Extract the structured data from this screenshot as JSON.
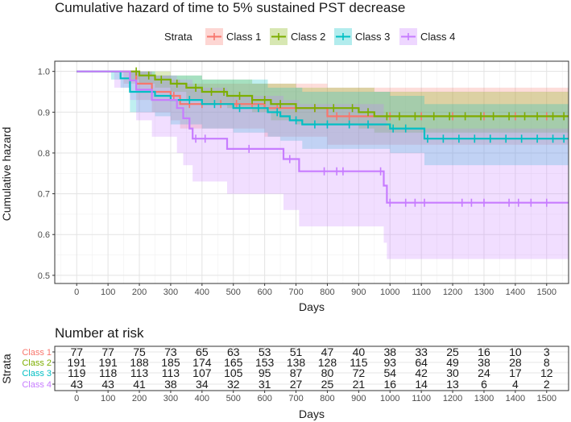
{
  "chart_data": {
    "type": "line",
    "title": "Cumulative hazard of time to 5% sustained PST decrease",
    "legend_title": "Strata",
    "legend_position": "top",
    "xlabel": "Days",
    "ylabel": "Cumulative hazard",
    "xlim": [
      -70,
      1570
    ],
    "ylim": [
      0.48,
      1.025
    ],
    "x_ticks": [
      0,
      100,
      200,
      300,
      400,
      500,
      600,
      700,
      800,
      900,
      1000,
      1100,
      1200,
      1300,
      1400,
      1500
    ],
    "y_ticks": [
      0.5,
      0.6,
      0.7,
      0.8,
      0.9,
      1.0
    ],
    "y_tick_labels": [
      "0.5",
      "0.6",
      "0.7",
      "0.8",
      "0.9",
      "1.0"
    ],
    "grid": true,
    "series": [
      {
        "name": "Class 1",
        "color": "#F8766D",
        "steps": [
          [
            0,
            1.0
          ],
          [
            100,
            1.0
          ],
          [
            190,
            0.97
          ],
          [
            240,
            0.95
          ],
          [
            300,
            0.94
          ],
          [
            330,
            0.92
          ],
          [
            600,
            0.91
          ],
          [
            800,
            0.89
          ],
          [
            1570,
            0.89
          ]
        ],
        "ci_lower": [
          [
            0,
            1.0
          ],
          [
            150,
            0.97
          ],
          [
            190,
            0.93
          ],
          [
            240,
            0.9
          ],
          [
            300,
            0.88
          ],
          [
            330,
            0.86
          ],
          [
            600,
            0.84
          ],
          [
            800,
            0.82
          ],
          [
            1570,
            0.82
          ]
        ],
        "ci_upper": [
          [
            0,
            1.0
          ],
          [
            150,
            1.0
          ],
          [
            190,
            1.0
          ],
          [
            240,
            0.99
          ],
          [
            300,
            0.98
          ],
          [
            330,
            0.97
          ],
          [
            600,
            0.97
          ],
          [
            800,
            0.96
          ],
          [
            1570,
            0.96
          ]
        ],
        "censor_marks": [
          310,
          360,
          400,
          460,
          510,
          560,
          640,
          700,
          760,
          830,
          870,
          1000,
          1100,
          1200,
          1300,
          1400,
          1500
        ]
      },
      {
        "name": "Class 2",
        "color": "#7CAE00",
        "steps": [
          [
            0,
            1.0
          ],
          [
            170,
            1.0
          ],
          [
            200,
            0.99
          ],
          [
            250,
            0.98
          ],
          [
            300,
            0.97
          ],
          [
            350,
            0.96
          ],
          [
            400,
            0.95
          ],
          [
            480,
            0.94
          ],
          [
            560,
            0.93
          ],
          [
            620,
            0.92
          ],
          [
            700,
            0.91
          ],
          [
            900,
            0.9
          ],
          [
            950,
            0.89
          ],
          [
            1570,
            0.89
          ]
        ],
        "ci_lower": [
          [
            0,
            1.0
          ],
          [
            170,
            0.98
          ],
          [
            200,
            0.97
          ],
          [
            250,
            0.96
          ],
          [
            300,
            0.95
          ],
          [
            350,
            0.93
          ],
          [
            400,
            0.92
          ],
          [
            480,
            0.91
          ],
          [
            560,
            0.9
          ],
          [
            620,
            0.88
          ],
          [
            700,
            0.87
          ],
          [
            900,
            0.86
          ],
          [
            950,
            0.85
          ],
          [
            1570,
            0.84
          ]
        ],
        "ci_upper": [
          [
            0,
            1.0
          ],
          [
            170,
            1.0
          ],
          [
            300,
            0.99
          ],
          [
            400,
            0.98
          ],
          [
            560,
            0.97
          ],
          [
            700,
            0.96
          ],
          [
            950,
            0.95
          ],
          [
            1570,
            0.94
          ]
        ],
        "censor_marks": [
          190,
          230,
          270,
          320,
          380,
          430,
          470,
          520,
          560,
          600,
          650,
          700,
          760,
          820,
          880,
          930,
          990,
          1030,
          1080,
          1140,
          1190,
          1240,
          1290,
          1330,
          1380,
          1430,
          1470,
          1520,
          1555
        ]
      },
      {
        "name": "Class 3",
        "color": "#00BFC4",
        "steps": [
          [
            0,
            1.0
          ],
          [
            110,
            1.0
          ],
          [
            140,
            0.983
          ],
          [
            170,
            0.95
          ],
          [
            250,
            0.94
          ],
          [
            300,
            0.93
          ],
          [
            400,
            0.92
          ],
          [
            500,
            0.91
          ],
          [
            610,
            0.9
          ],
          [
            650,
            0.89
          ],
          [
            680,
            0.88
          ],
          [
            720,
            0.87
          ],
          [
            1000,
            0.86
          ],
          [
            1110,
            0.835
          ],
          [
            1570,
            0.835
          ]
        ],
        "ci_lower": [
          [
            0,
            1.0
          ],
          [
            110,
            0.98
          ],
          [
            140,
            0.96
          ],
          [
            170,
            0.9
          ],
          [
            250,
            0.89
          ],
          [
            300,
            0.87
          ],
          [
            400,
            0.86
          ],
          [
            500,
            0.85
          ],
          [
            610,
            0.84
          ],
          [
            650,
            0.83
          ],
          [
            720,
            0.81
          ],
          [
            1000,
            0.8
          ],
          [
            1110,
            0.77
          ],
          [
            1570,
            0.76
          ]
        ],
        "ci_upper": [
          [
            0,
            1.0
          ],
          [
            140,
            1.0
          ],
          [
            250,
            0.99
          ],
          [
            400,
            0.98
          ],
          [
            610,
            0.96
          ],
          [
            720,
            0.95
          ],
          [
            1000,
            0.94
          ],
          [
            1110,
            0.92
          ],
          [
            1570,
            0.92
          ]
        ],
        "censor_marks": [
          360,
          440,
          520,
          580,
          640,
          700,
          760,
          800,
          870,
          930,
          1010,
          1050,
          1120,
          1170,
          1220,
          1270,
          1320,
          1370,
          1420,
          1470,
          1520,
          1555
        ]
      },
      {
        "name": "Class 4",
        "color": "#C77CFF",
        "steps": [
          [
            0,
            1.0
          ],
          [
            120,
            1.0
          ],
          [
            170,
            0.978
          ],
          [
            190,
            0.955
          ],
          [
            240,
            0.93
          ],
          [
            320,
            0.91
          ],
          [
            340,
            0.885
          ],
          [
            360,
            0.86
          ],
          [
            370,
            0.835
          ],
          [
            480,
            0.81
          ],
          [
            660,
            0.785
          ],
          [
            710,
            0.755
          ],
          [
            980,
            0.72
          ],
          [
            990,
            0.678
          ],
          [
            1570,
            0.678
          ]
        ],
        "ci_lower": [
          [
            0,
            1.0
          ],
          [
            120,
            0.96
          ],
          [
            170,
            0.93
          ],
          [
            190,
            0.88
          ],
          [
            240,
            0.84
          ],
          [
            320,
            0.8
          ],
          [
            340,
            0.77
          ],
          [
            370,
            0.73
          ],
          [
            480,
            0.7
          ],
          [
            660,
            0.66
          ],
          [
            710,
            0.62
          ],
          [
            980,
            0.58
          ],
          [
            990,
            0.54
          ],
          [
            1570,
            0.54
          ]
        ],
        "ci_upper": [
          [
            0,
            1.0
          ],
          [
            170,
            1.0
          ],
          [
            240,
            0.99
          ],
          [
            320,
            0.98
          ],
          [
            370,
            0.96
          ],
          [
            480,
            0.94
          ],
          [
            660,
            0.93
          ],
          [
            710,
            0.92
          ],
          [
            980,
            0.89
          ],
          [
            990,
            0.86
          ],
          [
            1570,
            0.86
          ]
        ],
        "censor_marks": [
          380,
          410,
          550,
          680,
          790,
          830,
          850,
          970,
          1000,
          1050,
          1080,
          1110,
          1230,
          1260,
          1300,
          1380,
          1410,
          1450,
          1500
        ]
      }
    ]
  },
  "risk_table": {
    "title": "Number at risk",
    "ylabel": "Strata",
    "xlabel": "Days",
    "times": [
      0,
      100,
      200,
      300,
      400,
      500,
      600,
      700,
      800,
      900,
      1000,
      1100,
      1200,
      1300,
      1400,
      1500
    ],
    "rows": [
      {
        "name": "Class 1",
        "color": "#F8766D",
        "counts": [
          "77",
          "77",
          "75",
          "73",
          "65",
          "63",
          "53",
          "51",
          "47",
          "40",
          "38",
          "33",
          "25",
          "16",
          "10",
          "3"
        ]
      },
      {
        "name": "Class 2",
        "color": "#7CAE00",
        "counts": [
          "191",
          "191",
          "188",
          "185",
          "174",
          "165",
          "153",
          "138",
          "128",
          "115",
          "93",
          "64",
          "49",
          "38",
          "28",
          "8"
        ]
      },
      {
        "name": "Class 3",
        "color": "#00BFC4",
        "counts": [
          "119",
          "118",
          "113",
          "113",
          "107",
          "105",
          "95",
          "87",
          "80",
          "72",
          "54",
          "42",
          "30",
          "24",
          "17",
          "12"
        ]
      },
      {
        "name": "Class 4",
        "color": "#C77CFF",
        "counts": [
          "43",
          "43",
          "41",
          "38",
          "34",
          "32",
          "31",
          "27",
          "25",
          "21",
          "16",
          "14",
          "13",
          "6",
          "4",
          "2"
        ]
      }
    ]
  }
}
